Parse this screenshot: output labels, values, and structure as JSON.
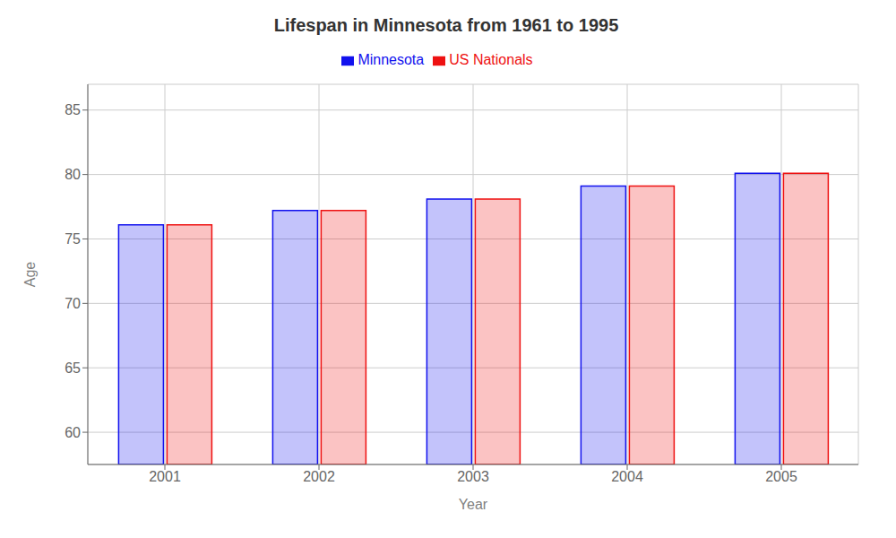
{
  "chart_data": {
    "type": "bar",
    "title": "Lifespan in Minnesota from 1961 to 1995",
    "x_label": "Year",
    "y_label": "Age",
    "categories": [
      "2001",
      "2002",
      "2003",
      "2004",
      "2005"
    ],
    "series": [
      {
        "name": "Minnesota",
        "color": "#1111ee",
        "values": [
          76.1,
          77.2,
          78.1,
          79.1,
          80.1
        ]
      },
      {
        "name": "US Nationals",
        "color": "#ee1111",
        "values": [
          76.1,
          77.2,
          78.1,
          79.1,
          80.1
        ]
      }
    ],
    "ylim": [
      57.5,
      87
    ],
    "yticks": [
      60,
      65,
      70,
      75,
      80,
      85
    ],
    "grid": true,
    "legend": "top"
  }
}
